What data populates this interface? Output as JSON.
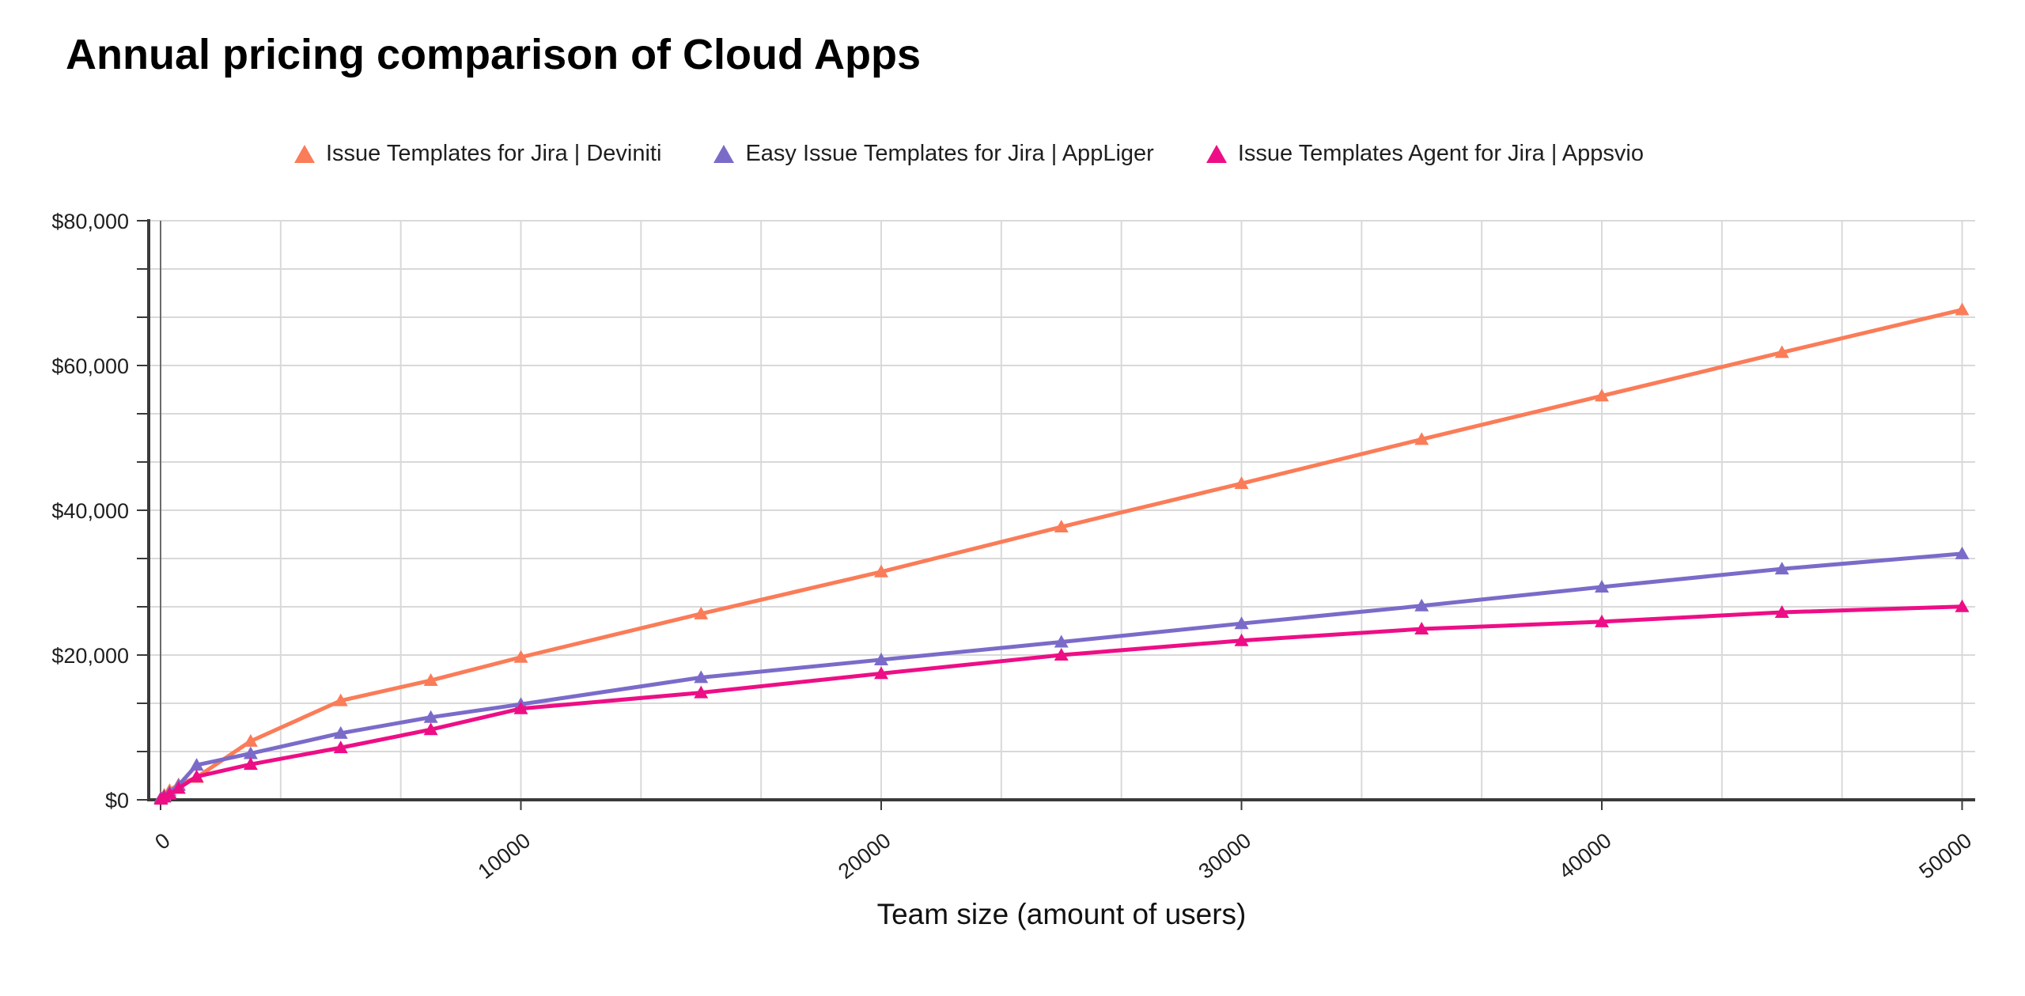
{
  "page": {
    "title": "Annual pricing comparison of Cloud Apps"
  },
  "chart_data": {
    "type": "line",
    "title": "Annual pricing comparison of Cloud Apps",
    "xlabel": "Team size (amount of users)",
    "ylabel": "",
    "marker": "triangle-up",
    "legend_position": "top",
    "grid": {
      "on": true,
      "minor_divisions_per_major": 3,
      "gridline_color": "#d9d9d9",
      "axis_color": "#3a3a3a",
      "zero_line_color": "#6b6b6b"
    },
    "xlim": [
      0,
      50000
    ],
    "ylim": [
      0,
      80000
    ],
    "x_tick_values": [
      0,
      10000,
      20000,
      30000,
      40000,
      50000
    ],
    "x_tick_labels": [
      "0",
      "10000",
      "20000",
      "30000",
      "40000",
      "50000"
    ],
    "y_tick_values": [
      0,
      20000,
      40000,
      60000,
      80000
    ],
    "y_tick_labels": [
      "$0",
      "$20,000",
      "$40,000",
      "$60,000",
      "$80,000"
    ],
    "x": [
      10,
      100,
      250,
      500,
      1000,
      2500,
      5000,
      7500,
      10000,
      15000,
      20000,
      25000,
      30000,
      35000,
      40000,
      45000,
      50000
    ],
    "series": [
      {
        "name": "Issue Templates for Jira | Deviniti",
        "color": "#fa7c58",
        "values": [
          300,
          650,
          1300,
          2100,
          3100,
          8100,
          13700,
          16500,
          19700,
          25700,
          31500,
          37700,
          43700,
          49800,
          55800,
          61800,
          67700
        ]
      },
      {
        "name": "Easy Issue Templates for Jira | AppLiger",
        "color": "#7b6bc9",
        "values": [
          250,
          500,
          1000,
          2000,
          4800,
          6400,
          9200,
          11400,
          13200,
          16900,
          19350,
          21800,
          24350,
          26800,
          29400,
          31900,
          34000
        ]
      },
      {
        "name": "Issue Templates Agent for Jira | Appsvio",
        "color": "#ed0e86",
        "values": [
          100,
          400,
          800,
          1600,
          3200,
          4900,
          7200,
          9700,
          12600,
          14800,
          17450,
          20000,
          22000,
          23600,
          24600,
          25900,
          26700
        ]
      }
    ]
  }
}
